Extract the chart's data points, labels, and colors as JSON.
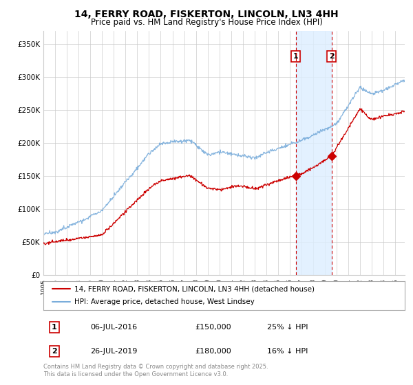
{
  "title": "14, FERRY ROAD, FISKERTON, LINCOLN, LN3 4HH",
  "subtitle": "Price paid vs. HM Land Registry's House Price Index (HPI)",
  "ylabel_ticks": [
    "£0",
    "£50K",
    "£100K",
    "£150K",
    "£200K",
    "£250K",
    "£300K",
    "£350K"
  ],
  "ylabel_values": [
    0,
    50000,
    100000,
    150000,
    200000,
    250000,
    300000,
    350000
  ],
  "ylim": [
    0,
    370000
  ],
  "xlim_start": 1995.0,
  "xlim_end": 2025.8,
  "sale1_date": 2016.51,
  "sale1_label": "1",
  "sale1_price": 150000,
  "sale1_pct": "25%",
  "sale2_date": 2019.57,
  "sale2_label": "2",
  "sale2_price": 180000,
  "sale2_pct": "16%",
  "sale1_display_date": "06-JUL-2016",
  "sale2_display_date": "26-JUL-2019",
  "legend_line1": "14, FERRY ROAD, FISKERTON, LINCOLN, LN3 4HH (detached house)",
  "legend_line2": "HPI: Average price, detached house, West Lindsey",
  "footnote": "Contains HM Land Registry data © Crown copyright and database right 2025.\nThis data is licensed under the Open Government Licence v3.0.",
  "line_red_color": "#cc0000",
  "line_blue_color": "#7aaddb",
  "shade_color": "#ddeeff",
  "vline_color": "#cc0000",
  "grid_color": "#cccccc",
  "background_color": "#ffffff"
}
